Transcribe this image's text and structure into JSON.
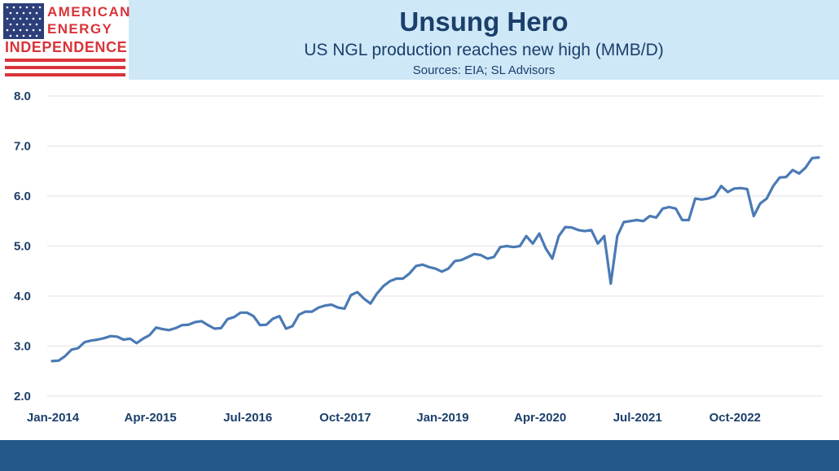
{
  "logo": {
    "line1": "AMERICAN",
    "line2": "ENERGY",
    "line3": "INDEPENDENCE"
  },
  "colors": {
    "title": "#1b3f6b",
    "line": "#4a7ab5",
    "header_band": "#cfe8f8",
    "footer": "#24588a",
    "logo_red": "#d9343a",
    "flag_blue": "#2c3f7a"
  },
  "chart_data": {
    "type": "line",
    "title": "Unsung Hero",
    "subtitle": "US NGL production reaches new high (MMB/D)",
    "source": "Sources: EIA; SL Advisors",
    "xlabel": "",
    "ylabel": "",
    "ylim": [
      2.0,
      8.0
    ],
    "yticks": [
      "2.0",
      "3.0",
      "4.0",
      "5.0",
      "6.0",
      "7.0",
      "8.0"
    ],
    "xticks": [
      "Jan-2014",
      "Apr-2015",
      "Jul-2016",
      "Oct-2017",
      "Jan-2019",
      "Apr-2020",
      "Jul-2021",
      "Oct-2022"
    ],
    "grid": true,
    "start": "Jan-2014",
    "frequency": "monthly",
    "series": [
      {
        "values": [
          2.7,
          2.71,
          2.8,
          2.93,
          2.96,
          3.08,
          3.11,
          3.13,
          3.16,
          3.2,
          3.19,
          3.13,
          3.15,
          3.06,
          3.15,
          3.22,
          3.37,
          3.34,
          3.32,
          3.36,
          3.42,
          3.43,
          3.48,
          3.5,
          3.42,
          3.35,
          3.36,
          3.54,
          3.58,
          3.67,
          3.67,
          3.6,
          3.42,
          3.43,
          3.55,
          3.6,
          3.35,
          3.4,
          3.63,
          3.69,
          3.69,
          3.77,
          3.81,
          3.83,
          3.77,
          3.75,
          4.02,
          4.08,
          3.95,
          3.85,
          4.05,
          4.2,
          4.3,
          4.35,
          4.35,
          4.45,
          4.6,
          4.63,
          4.58,
          4.55,
          4.49,
          4.55,
          4.7,
          4.72,
          4.78,
          4.84,
          4.82,
          4.75,
          4.78,
          4.98,
          5.0,
          4.98,
          5.0,
          5.2,
          5.05,
          5.25,
          4.95,
          4.75,
          5.2,
          5.38,
          5.37,
          5.32,
          5.3,
          5.32,
          5.05,
          5.2,
          4.25,
          5.2,
          5.48,
          5.5,
          5.52,
          5.5,
          5.6,
          5.57,
          5.75,
          5.78,
          5.75,
          5.52,
          5.52,
          5.95,
          5.93,
          5.95,
          6.0,
          6.2,
          6.08,
          6.15,
          6.16,
          6.14,
          5.6,
          5.85,
          5.95,
          6.2,
          6.37,
          6.38,
          6.52,
          6.45,
          6.57,
          6.76,
          6.77
        ]
      }
    ]
  }
}
